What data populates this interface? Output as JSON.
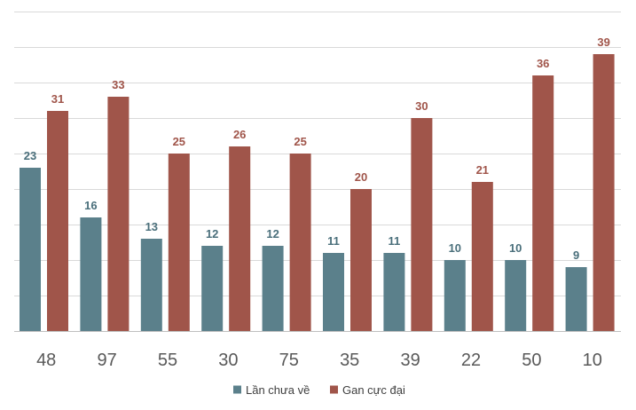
{
  "chart_data": {
    "type": "bar",
    "title": "",
    "xlabel": "",
    "ylabel": "",
    "categories": [
      "48",
      "97",
      "55",
      "30",
      "75",
      "35",
      "39",
      "22",
      "50",
      "10"
    ],
    "series": [
      {
        "name": "Lần chưa về",
        "color": "#5b808b",
        "label_color": "#4a6f7b",
        "values": [
          23,
          16,
          13,
          12,
          12,
          11,
          11,
          10,
          10,
          9
        ]
      },
      {
        "name": "Gan cực đại",
        "color": "#a0554a",
        "label_color": "#a0554a",
        "values": [
          31,
          33,
          25,
          26,
          25,
          20,
          30,
          21,
          36,
          39
        ]
      }
    ],
    "ylim": [
      0,
      45
    ],
    "grid": true,
    "legend": "bottom-center"
  }
}
